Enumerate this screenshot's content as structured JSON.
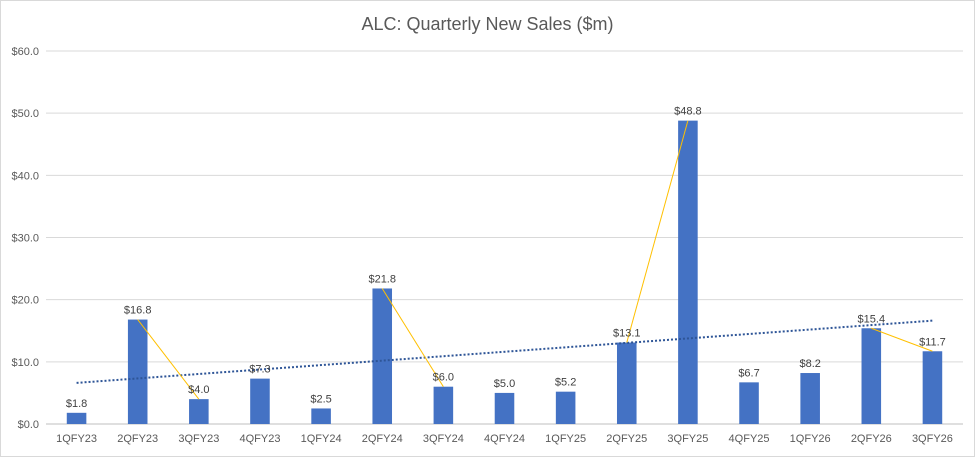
{
  "chart_data": {
    "type": "bar",
    "title": "ALC: Quarterly New Sales ($m)",
    "xlabel": "",
    "ylabel": "",
    "categories": [
      "1QFY23",
      "2QFY23",
      "3QFY23",
      "4QFY23",
      "1QFY24",
      "2QFY24",
      "3QFY24",
      "4QFY24",
      "1QFY25",
      "2QFY25",
      "3QFY25",
      "4QFY25",
      "1QFY26",
      "2QFY26",
      "3QFY26"
    ],
    "values": [
      1.8,
      16.8,
      4.0,
      7.3,
      2.5,
      21.8,
      6.0,
      5.0,
      5.2,
      13.1,
      48.8,
      6.7,
      8.2,
      15.4,
      11.7
    ],
    "data_labels": [
      "$1.8",
      "$16.8",
      "$4.0",
      "$7.3",
      "$2.5",
      "$21.8",
      "$6.0",
      "$5.0",
      "$5.2",
      "$13.1",
      "$48.8",
      "$6.7",
      "$8.2",
      "$15.4",
      "$11.7"
    ],
    "ylim": [
      0,
      60
    ],
    "yticks": [
      0,
      10,
      20,
      30,
      40,
      50,
      60
    ],
    "ytick_labels": [
      "$0.0",
      "$10.0",
      "$20.0",
      "$30.0",
      "$40.0",
      "$50.0",
      "$60.0"
    ],
    "grid": true,
    "bar_color": "#4472c4",
    "trendline": {
      "type": "linear",
      "style": "dotted",
      "color": "#2e5597"
    },
    "connectors": {
      "color": "#ffc000",
      "pairs": [
        [
          "2QFY23",
          "3QFY23"
        ],
        [
          "2QFY24",
          "3QFY24"
        ],
        [
          "2QFY25",
          "3QFY25"
        ],
        [
          "2QFY26",
          "3QFY26"
        ]
      ]
    }
  }
}
